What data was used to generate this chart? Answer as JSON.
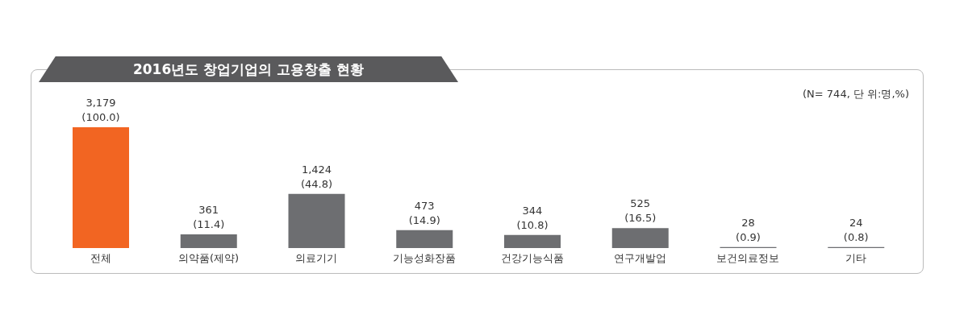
{
  "chart_data": {
    "type": "bar",
    "title": "2016년도 창업기업의 고용창출 현황",
    "annotations": [
      "(N= 744,  단 위:명,%)"
    ],
    "categories": [
      "전체",
      "의약품(제약)",
      "의료기기",
      "기능성화장품",
      "건강기능식품",
      "연구개발업",
      "보건의료정보",
      "기타"
    ],
    "values": [
      3179,
      361,
      1424,
      473,
      344,
      525,
      28,
      24
    ],
    "colors": [
      "#f26522",
      "#6d6e71",
      "#6d6e71",
      "#6d6e71",
      "#6d6e71",
      "#6d6e71",
      "#6d6e71",
      "#6d6e71"
    ],
    "value_labels": [
      "3,179\n(100.0)",
      "361\n(11.4)",
      "1,424\n(44.8)",
      "473\n(14.9)",
      "344\n(10.8)",
      "525\n(16.5)",
      "28\n(0.9)",
      "24\n(0.8)"
    ],
    "tick_labels": "x",
    "grid": false,
    "legend": false
  }
}
